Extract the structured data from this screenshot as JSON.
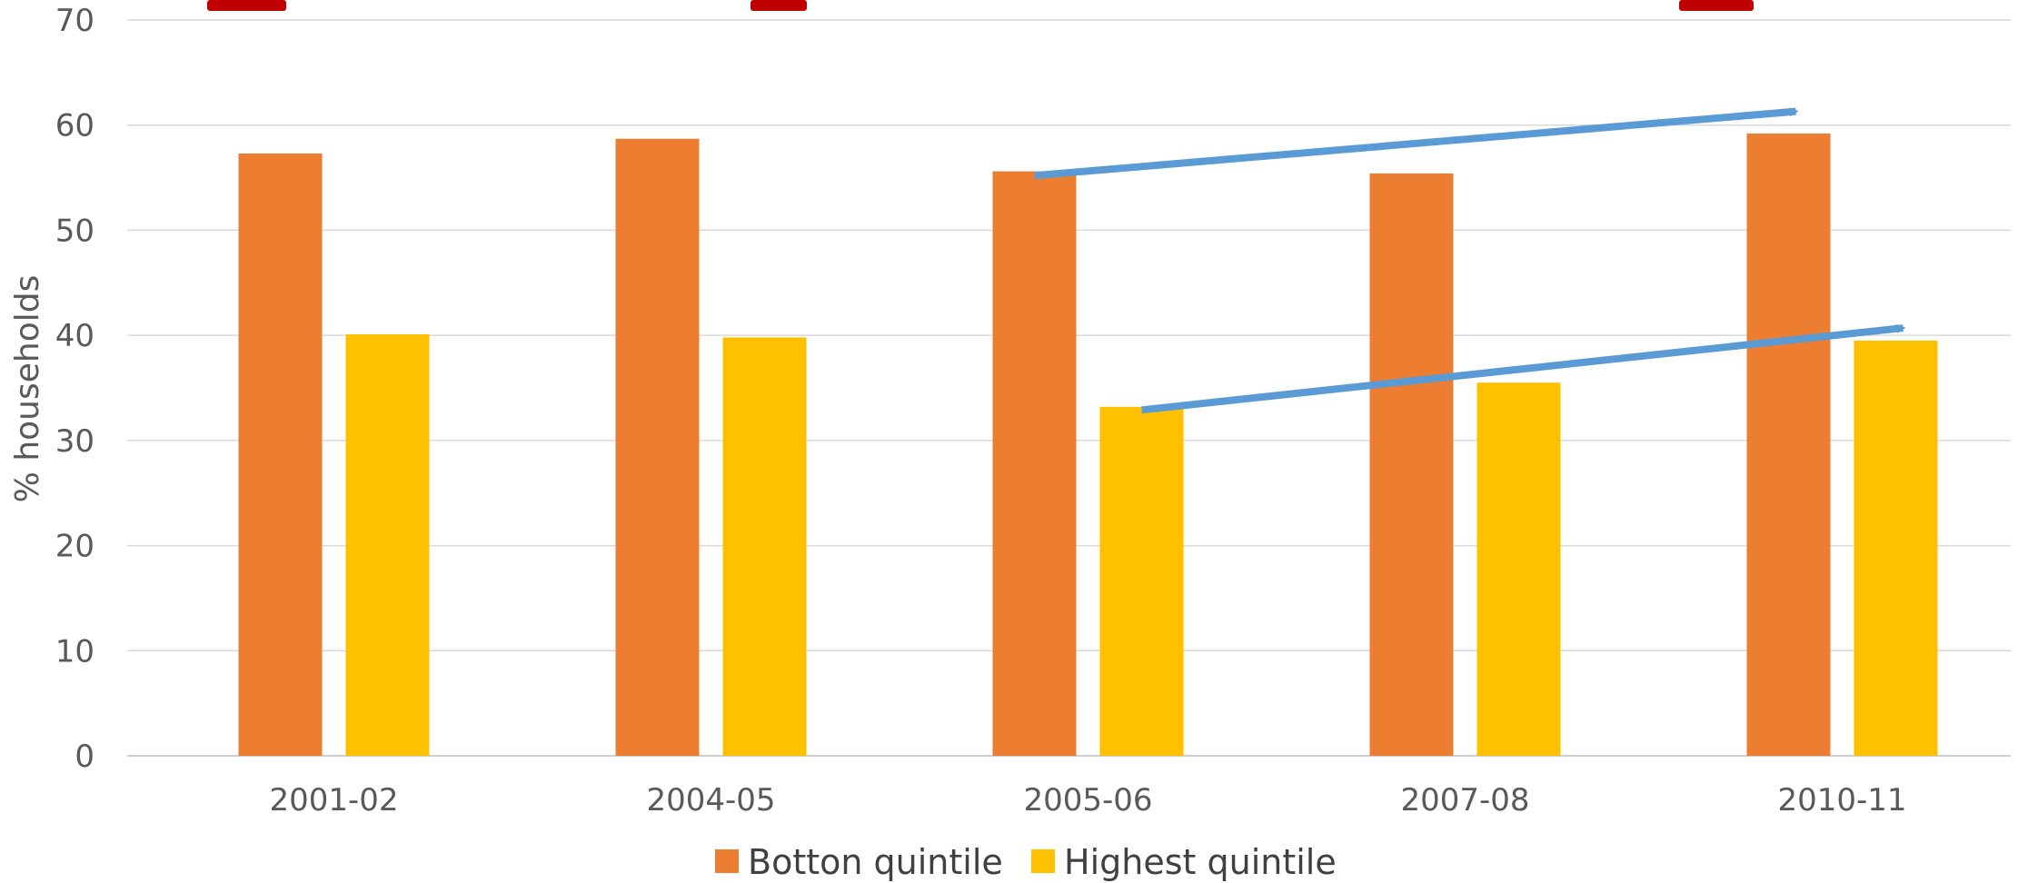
{
  "chart_data": {
    "type": "bar",
    "title": "",
    "xlabel": "",
    "ylabel": "% households",
    "ylim": [
      0,
      70
    ],
    "yticks": [
      0,
      10,
      20,
      30,
      40,
      50,
      60,
      70
    ],
    "categories": [
      "2001-02",
      "2004-05",
      "2005-06",
      "2007-08",
      "2010-11"
    ],
    "series": [
      {
        "name": "Botton quintile",
        "color": "#ED7D31",
        "values": [
          57.3,
          58.7,
          55.6,
          55.4,
          59.2
        ]
      },
      {
        "name": "Highest quintile",
        "color": "#FFC000",
        "values": [
          40.1,
          39.8,
          33.2,
          35.5,
          39.5
        ]
      }
    ],
    "grid": true,
    "legend_position": "bottom",
    "annotations": [
      {
        "type": "arrow",
        "color": "#5B9BD5",
        "from": {
          "category": "2005-06",
          "series": 0,
          "y": 55.2
        },
        "to": {
          "category": "2010-11",
          "series": 0,
          "y": 61.3
        }
      },
      {
        "type": "arrow",
        "color": "#5B9BD5",
        "from": {
          "category": "2005-06",
          "series": 1,
          "y": 32.9
        },
        "to": {
          "category": "2010-11",
          "series": 1,
          "y": 40.7
        }
      }
    ],
    "title_strip_color": "#C00000"
  }
}
